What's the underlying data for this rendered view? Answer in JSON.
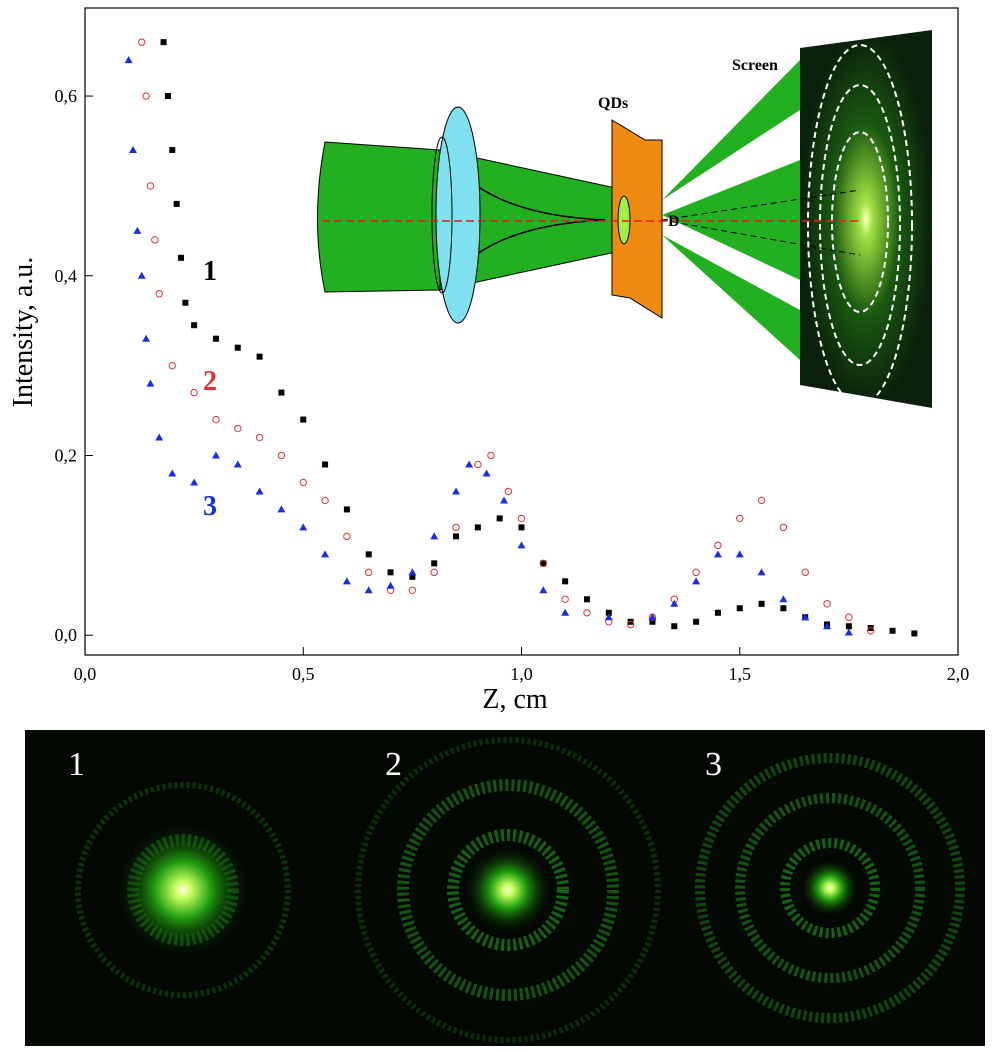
{
  "chart_data": {
    "type": "scatter",
    "xlabel": "Z, cm",
    "ylabel": "Intensity, a.u.",
    "xlim": [
      0,
      2
    ],
    "ylim": [
      -0.022,
      0.698
    ],
    "xticks": [
      {
        "value": 0,
        "label": "0,0"
      },
      {
        "value": 0.5,
        "label": "0,5"
      },
      {
        "value": 1,
        "label": "1,0"
      },
      {
        "value": 1.5,
        "label": "1,5"
      },
      {
        "value": 2,
        "label": "2,0"
      }
    ],
    "yticks": [
      {
        "value": 0,
        "label": "0,0"
      },
      {
        "value": 0.2,
        "label": "0,2"
      },
      {
        "value": 0.4,
        "label": "0,4"
      },
      {
        "value": 0.6,
        "label": "0,6"
      }
    ],
    "series": [
      {
        "name": "1",
        "color": "#000000",
        "marker": "square",
        "x": [
          0.18,
          0.19,
          0.2,
          0.21,
          0.22,
          0.23,
          0.25,
          0.3,
          0.35,
          0.4,
          0.45,
          0.5,
          0.55,
          0.6,
          0.65,
          0.7,
          0.75,
          0.8,
          0.85,
          0.9,
          0.95,
          1.0,
          1.05,
          1.1,
          1.15,
          1.2,
          1.25,
          1.3,
          1.35,
          1.4,
          1.45,
          1.5,
          1.55,
          1.6,
          1.65,
          1.7,
          1.75,
          1.8,
          1.85,
          1.9
        ],
        "values": [
          0.66,
          0.6,
          0.54,
          0.48,
          0.42,
          0.37,
          0.345,
          0.33,
          0.32,
          0.31,
          0.27,
          0.24,
          0.19,
          0.14,
          0.09,
          0.07,
          0.065,
          0.08,
          0.11,
          0.12,
          0.13,
          0.12,
          0.08,
          0.06,
          0.04,
          0.025,
          0.015,
          0.015,
          0.01,
          0.015,
          0.025,
          0.03,
          0.035,
          0.03,
          0.02,
          0.012,
          0.01,
          0.008,
          0.005,
          0.002
        ]
      },
      {
        "name": "2",
        "color": "#e03030",
        "marker": "circle",
        "x": [
          0.13,
          0.14,
          0.15,
          0.16,
          0.17,
          0.2,
          0.25,
          0.3,
          0.35,
          0.4,
          0.45,
          0.5,
          0.55,
          0.6,
          0.65,
          0.7,
          0.75,
          0.8,
          0.85,
          0.9,
          0.93,
          0.97,
          1.0,
          1.05,
          1.1,
          1.15,
          1.2,
          1.25,
          1.3,
          1.35,
          1.4,
          1.45,
          1.5,
          1.55,
          1.6,
          1.65,
          1.7,
          1.75,
          1.8
        ],
        "values": [
          0.66,
          0.6,
          0.5,
          0.44,
          0.38,
          0.3,
          0.27,
          0.24,
          0.23,
          0.22,
          0.2,
          0.17,
          0.15,
          0.11,
          0.07,
          0.05,
          0.05,
          0.07,
          0.12,
          0.19,
          0.2,
          0.16,
          0.13,
          0.08,
          0.04,
          0.025,
          0.015,
          0.012,
          0.02,
          0.04,
          0.07,
          0.1,
          0.13,
          0.15,
          0.12,
          0.07,
          0.035,
          0.02,
          0.005
        ]
      },
      {
        "name": "3",
        "color": "#1a2ee0",
        "marker": "triangle",
        "x": [
          0.1,
          0.11,
          0.12,
          0.13,
          0.14,
          0.15,
          0.17,
          0.2,
          0.25,
          0.3,
          0.35,
          0.4,
          0.45,
          0.5,
          0.55,
          0.6,
          0.65,
          0.7,
          0.75,
          0.8,
          0.85,
          0.88,
          0.92,
          0.96,
          1.0,
          1.05,
          1.1,
          1.2,
          1.3,
          1.35,
          1.4,
          1.45,
          1.5,
          1.55,
          1.6,
          1.65,
          1.7,
          1.75
        ],
        "values": [
          0.64,
          0.54,
          0.45,
          0.4,
          0.33,
          0.28,
          0.22,
          0.18,
          0.17,
          0.2,
          0.19,
          0.16,
          0.14,
          0.12,
          0.09,
          0.06,
          0.05,
          0.055,
          0.07,
          0.11,
          0.16,
          0.19,
          0.18,
          0.15,
          0.1,
          0.05,
          0.025,
          0.02,
          0.02,
          0.035,
          0.06,
          0.09,
          0.09,
          0.07,
          0.04,
          0.02,
          0.01,
          0.003
        ]
      }
    ]
  },
  "inset": {
    "labels": [
      "QDs",
      "D",
      "Screen"
    ]
  },
  "photos": {
    "labels": [
      "1",
      "2",
      "3"
    ]
  }
}
